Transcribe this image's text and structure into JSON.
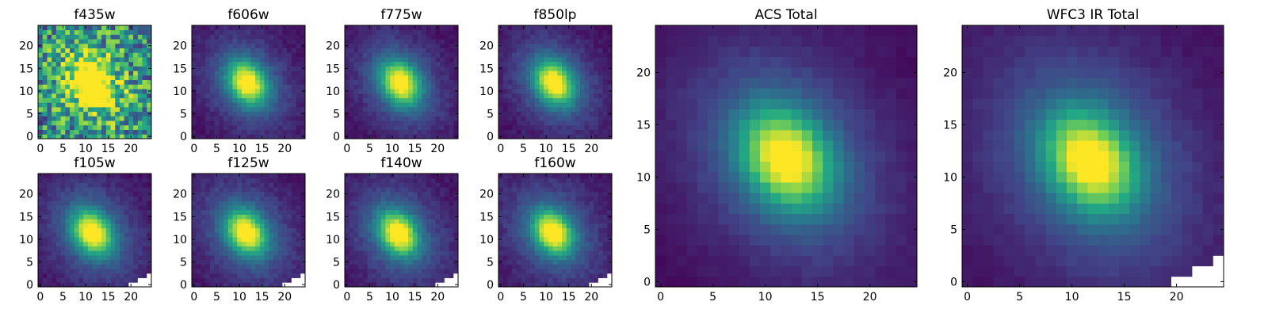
{
  "figure": {
    "colormap": "viridis",
    "colormap_stops": [
      "#440154",
      "#414487",
      "#2a788e",
      "#22a884",
      "#7ad151",
      "#fde725"
    ],
    "masked_color": "#ffffff"
  },
  "chart_data": [
    {
      "type": "heatmap",
      "title": "f435w",
      "xlim": [
        0,
        24
      ],
      "ylim": [
        0,
        24
      ],
      "xticks": [
        "0",
        "5",
        "10",
        "15",
        "20"
      ],
      "yticks": [
        "0",
        "5",
        "10",
        "15",
        "20"
      ],
      "grid": "25x25",
      "center": [
        11.5,
        11.5
      ],
      "peak": 1.0,
      "background": 0.45,
      "noise": 0.35,
      "masked": "none"
    },
    {
      "type": "heatmap",
      "title": "f606w",
      "xlim": [
        0,
        24
      ],
      "ylim": [
        0,
        24
      ],
      "xticks": [
        "0",
        "5",
        "10",
        "15",
        "20"
      ],
      "yticks": [
        "0",
        "5",
        "10",
        "15",
        "20"
      ],
      "grid": "25x25",
      "center": [
        11.8,
        11.8
      ],
      "peak": 1.0,
      "background": 0.03,
      "noise": 0.04,
      "masked": "none"
    },
    {
      "type": "heatmap",
      "title": "f775w",
      "xlim": [
        0,
        24
      ],
      "ylim": [
        0,
        24
      ],
      "xticks": [
        "0",
        "5",
        "10",
        "15",
        "20"
      ],
      "yticks": [
        "0",
        "5",
        "10",
        "15",
        "20"
      ],
      "grid": "25x25",
      "center": [
        11.8,
        11.8
      ],
      "peak": 1.0,
      "background": 0.03,
      "noise": 0.04,
      "masked": "none"
    },
    {
      "type": "heatmap",
      "title": "f850lp",
      "xlim": [
        0,
        24
      ],
      "ylim": [
        0,
        24
      ],
      "xticks": [
        "0",
        "5",
        "10",
        "15",
        "20"
      ],
      "yticks": [
        "0",
        "5",
        "10",
        "15",
        "20"
      ],
      "grid": "25x25",
      "center": [
        11.8,
        11.8
      ],
      "peak": 1.0,
      "background": 0.03,
      "noise": 0.04,
      "masked": "none"
    },
    {
      "type": "heatmap",
      "title": "ACS Total",
      "xlim": [
        0,
        24
      ],
      "ylim": [
        0,
        24
      ],
      "xticks": [
        "0",
        "5",
        "10",
        "15",
        "20"
      ],
      "yticks": [
        "0",
        "5",
        "10",
        "15",
        "20"
      ],
      "grid": "25x25",
      "center": [
        12.0,
        11.8
      ],
      "peak": 1.0,
      "background": 0.02,
      "noise": 0.02,
      "masked": "none"
    },
    {
      "type": "heatmap",
      "title": "f105w",
      "xlim": [
        0,
        24
      ],
      "ylim": [
        0,
        24
      ],
      "xticks": [
        "0",
        "5",
        "10",
        "15",
        "20"
      ],
      "yticks": [
        "0",
        "5",
        "10",
        "15",
        "20"
      ],
      "grid": "25x25",
      "center": [
        11.5,
        11.5
      ],
      "peak": 1.0,
      "background": 0.05,
      "noise": 0.04,
      "masked": "lower-right corner"
    },
    {
      "type": "heatmap",
      "title": "f125w",
      "xlim": [
        0,
        24
      ],
      "ylim": [
        0,
        24
      ],
      "xticks": [
        "0",
        "5",
        "10",
        "15",
        "20"
      ],
      "yticks": [
        "0",
        "5",
        "10",
        "15",
        "20"
      ],
      "grid": "25x25",
      "center": [
        11.5,
        11.5
      ],
      "peak": 1.0,
      "background": 0.05,
      "noise": 0.04,
      "masked": "lower-right corner"
    },
    {
      "type": "heatmap",
      "title": "f140w",
      "xlim": [
        0,
        24
      ],
      "ylim": [
        0,
        24
      ],
      "xticks": [
        "0",
        "5",
        "10",
        "15",
        "20"
      ],
      "yticks": [
        "0",
        "5",
        "10",
        "15",
        "20"
      ],
      "grid": "25x25",
      "center": [
        11.3,
        11.3
      ],
      "peak": 1.0,
      "background": 0.05,
      "noise": 0.04,
      "masked": "lower-right corner"
    },
    {
      "type": "heatmap",
      "title": "f160w",
      "xlim": [
        0,
        24
      ],
      "ylim": [
        0,
        24
      ],
      "xticks": [
        "0",
        "5",
        "10",
        "15",
        "20"
      ],
      "yticks": [
        "0",
        "5",
        "10",
        "15",
        "20"
      ],
      "grid": "25x25",
      "center": [
        11.5,
        11.5
      ],
      "peak": 1.0,
      "background": 0.05,
      "noise": 0.04,
      "masked": "lower-right corner"
    },
    {
      "type": "heatmap",
      "title": "WFC3 IR Total",
      "xlim": [
        0,
        24
      ],
      "ylim": [
        0,
        24
      ],
      "xticks": [
        "0",
        "5",
        "10",
        "15",
        "20"
      ],
      "yticks": [
        "0",
        "5",
        "10",
        "15",
        "20"
      ],
      "grid": "25x25",
      "center": [
        11.8,
        11.5
      ],
      "peak": 1.0,
      "background": 0.04,
      "noise": 0.02,
      "masked": "lower-right corner"
    }
  ]
}
